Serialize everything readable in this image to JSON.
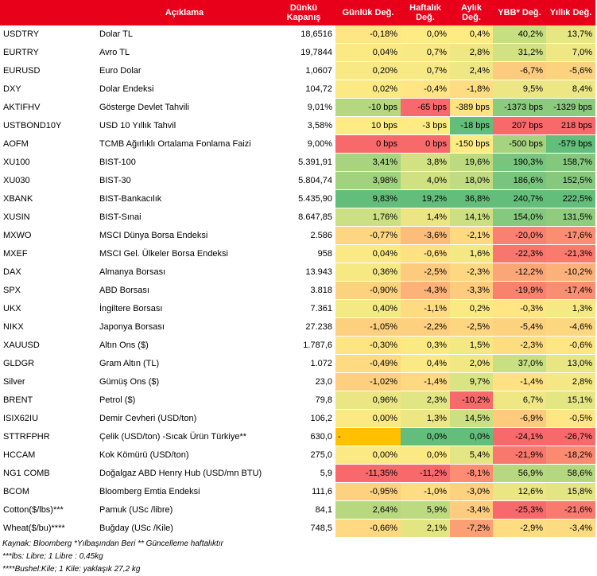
{
  "header": {
    "col_code": "",
    "col_desc": "Açıklama",
    "col_close": "Dünkü Kapanış",
    "col_daily": "Günlük Değ.",
    "col_weekly": "Haftalık Değ.",
    "col_monthly": "Aylık Değ.",
    "col_ytd": "YBB* Değ.",
    "col_yearly": "Yıllık Değ."
  },
  "colors": {
    "header_red": "#e8001a",
    "green_strong": "#63be7b",
    "green": "#a5d37f",
    "green_light": "#d1e282",
    "yellow": "#ffeb84",
    "orange_light": "#fcc17c",
    "orange": "#f9a077",
    "red": "#f8696b",
    "amber": "#ffc000"
  },
  "rows": [
    {
      "code": "USDTRY",
      "desc": "Dolar TL",
      "close": "18,6516",
      "c": [
        {
          "v": "-0,18%",
          "bg": "#ffe684"
        },
        {
          "v": "0,0%",
          "bg": "#ffeb84"
        },
        {
          "v": "0,4%",
          "bg": "#ffeb84"
        },
        {
          "v": "40,2%",
          "bg": "#c6df81"
        },
        {
          "v": "13,7%",
          "bg": "#e6e683"
        }
      ]
    },
    {
      "code": "EURTRY",
      "desc": "Avro TL",
      "close": "19,7844",
      "c": [
        {
          "v": "0,04%",
          "bg": "#fbea84"
        },
        {
          "v": "0,7%",
          "bg": "#f7e984"
        },
        {
          "v": "2,8%",
          "bg": "#eee784"
        },
        {
          "v": "31,2%",
          "bg": "#d2e282"
        },
        {
          "v": "7,0%",
          "bg": "#eee784"
        }
      ]
    },
    {
      "code": "EURUSD",
      "desc": "Euro Dolar",
      "close": "1,0607",
      "c": [
        {
          "v": "0,20%",
          "bg": "#f8e984"
        },
        {
          "v": "0,7%",
          "bg": "#f7e984"
        },
        {
          "v": "2,4%",
          "bg": "#efe784"
        },
        {
          "v": "-6,7%",
          "bg": "#fdcb7e"
        },
        {
          "v": "-5,6%",
          "bg": "#fdd27f"
        }
      ]
    },
    {
      "code": "DXY",
      "desc": "Dolar Endeksi",
      "close": "104,72",
      "c": [
        {
          "v": "0,02%",
          "bg": "#fbea84"
        },
        {
          "v": "-0,4%",
          "bg": "#ffe583"
        },
        {
          "v": "-1,8%",
          "bg": "#fedc81"
        },
        {
          "v": "9,5%",
          "bg": "#ece784"
        },
        {
          "v": "8,4%",
          "bg": "#ece784"
        }
      ]
    },
    {
      "code": "AKTIFHV",
      "desc": "Gösterge Devlet Tahvili",
      "close": "9,01%",
      "c": [
        {
          "v": "-10 bps",
          "bg": "#b4d780"
        },
        {
          "v": "-65 bps",
          "bg": "#f8696b"
        },
        {
          "v": "-389 bps",
          "bg": "#ffe283"
        },
        {
          "v": "-1373 bps",
          "bg": "#8ccb7e"
        },
        {
          "v": "-1329 bps",
          "bg": "#8ccb7e"
        }
      ]
    },
    {
      "code": "USTBOND10Y",
      "desc": "USD 10 Yıllık Tahvil",
      "close": "3,58%",
      "c": [
        {
          "v": "10 bps",
          "bg": "#ffeb84"
        },
        {
          "v": "-3 bps",
          "bg": "#ffeb84"
        },
        {
          "v": "-18 bps",
          "bg": "#63be7b"
        },
        {
          "v": "207 bps",
          "bg": "#f8696b"
        },
        {
          "v": "218 bps",
          "bg": "#f8696b"
        }
      ]
    },
    {
      "code": "AOFM",
      "desc": "TCMB Ağırlıklı Ortalama Fonlama Faizi",
      "close": "9,00%",
      "c": [
        {
          "v": "0 bps",
          "bg": "#f8696b"
        },
        {
          "v": "0 bps",
          "bg": "#f8696b"
        },
        {
          "v": "-150 bps",
          "bg": "#ffeb84"
        },
        {
          "v": "-500 bps",
          "bg": "#a5d37f"
        },
        {
          "v": "-579 bps",
          "bg": "#63be7b"
        }
      ]
    },
    {
      "code": "XU100",
      "desc": "BIST-100",
      "close": "5.391,91",
      "c": [
        {
          "v": "3,41%",
          "bg": "#a9d47f"
        },
        {
          "v": "3,8%",
          "bg": "#d1e282"
        },
        {
          "v": "19,6%",
          "bg": "#bcda80"
        },
        {
          "v": "190,3%",
          "bg": "#78c57d"
        },
        {
          "v": "158,7%",
          "bg": "#84c87e"
        }
      ]
    },
    {
      "code": "XU030",
      "desc": "BIST-30",
      "close": "5.804,74",
      "c": [
        {
          "v": "3,98%",
          "bg": "#a3d27f"
        },
        {
          "v": "4,0%",
          "bg": "#d0e182"
        },
        {
          "v": "18,0%",
          "bg": "#c0db81"
        },
        {
          "v": "186,6%",
          "bg": "#79c57d"
        },
        {
          "v": "152,5%",
          "bg": "#86c97e"
        }
      ]
    },
    {
      "code": "XBANK",
      "desc": "BIST-Bankacılık",
      "close": "5.435,90",
      "c": [
        {
          "v": "9,83%",
          "bg": "#63be7b"
        },
        {
          "v": "19,2%",
          "bg": "#63be7b"
        },
        {
          "v": "36,8%",
          "bg": "#63be7b"
        },
        {
          "v": "240,7%",
          "bg": "#63be7b"
        },
        {
          "v": "222,5%",
          "bg": "#63be7b"
        }
      ]
    },
    {
      "code": "XUSIN",
      "desc": "BIST-Sınai",
      "close": "8.647,85",
      "c": [
        {
          "v": "1,76%",
          "bg": "#cbe082"
        },
        {
          "v": "1,4%",
          "bg": "#ebe683"
        },
        {
          "v": "14,1%",
          "bg": "#cce082"
        },
        {
          "v": "154,0%",
          "bg": "#85c97e"
        },
        {
          "v": "131,5%",
          "bg": "#8fcc7e"
        }
      ]
    },
    {
      "code": "MXWO",
      "desc": "MSCI Dünya Borsa Endeksi",
      "close": "2.586",
      "c": [
        {
          "v": "-0,77%",
          "bg": "#fed580"
        },
        {
          "v": "-3,6%",
          "bg": "#fcbd7b"
        },
        {
          "v": "-2,1%",
          "bg": "#fed981"
        },
        {
          "v": "-20,0%",
          "bg": "#f9816f"
        },
        {
          "v": "-17,6%",
          "bg": "#fa8e72"
        }
      ]
    },
    {
      "code": "MXEF",
      "desc": "MSCI Gel. Ülkeler Borsa Endeksi",
      "close": "958",
      "c": [
        {
          "v": "0,04%",
          "bg": "#fbea84"
        },
        {
          "v": "-0,6%",
          "bg": "#fee182"
        },
        {
          "v": "1,6%",
          "bg": "#f3e884"
        },
        {
          "v": "-22,3%",
          "bg": "#f8766d"
        },
        {
          "v": "-21,3%",
          "bg": "#f97a6e"
        }
      ]
    },
    {
      "code": "DAX",
      "desc": "Almanya Borsası",
      "close": "13.943",
      "c": [
        {
          "v": "0,36%",
          "bg": "#f6e984"
        },
        {
          "v": "-2,5%",
          "bg": "#fdcb7e"
        },
        {
          "v": "-2,3%",
          "bg": "#fed880"
        },
        {
          "v": "-12,2%",
          "bg": "#fba676"
        },
        {
          "v": "-10,2%",
          "bg": "#fbb179"
        }
      ]
    },
    {
      "code": "SPX",
      "desc": "ABD Borsası",
      "close": "3.818",
      "c": [
        {
          "v": "-0,90%",
          "bg": "#fdd27f"
        },
        {
          "v": "-4,3%",
          "bg": "#fbb379"
        },
        {
          "v": "-3,3%",
          "bg": "#fdcc7e"
        },
        {
          "v": "-19,9%",
          "bg": "#f9826f"
        },
        {
          "v": "-17,4%",
          "bg": "#fa8e72"
        }
      ]
    },
    {
      "code": "UKX",
      "desc": "İngiltere Borsası",
      "close": "7.361",
      "c": [
        {
          "v": "0,40%",
          "bg": "#f5e984"
        },
        {
          "v": "-1,1%",
          "bg": "#fedb81"
        },
        {
          "v": "0,2%",
          "bg": "#fbea84"
        },
        {
          "v": "-0,3%",
          "bg": "#ffe583"
        },
        {
          "v": "1,3%",
          "bg": "#f6e984"
        }
      ]
    },
    {
      "code": "NIKX",
      "desc": "Japonya Borsası",
      "close": "27.238",
      "c": [
        {
          "v": "-1,05%",
          "bg": "#fdd07f"
        },
        {
          "v": "-2,2%",
          "bg": "#fdcf7e"
        },
        {
          "v": "-2,5%",
          "bg": "#fed680"
        },
        {
          "v": "-5,4%",
          "bg": "#fdd27f"
        },
        {
          "v": "-4,6%",
          "bg": "#fdd680"
        }
      ]
    },
    {
      "code": "XAUUSD",
      "desc": "Altın Ons ($)",
      "close": "1.787,6",
      "c": [
        {
          "v": "-0,30%",
          "bg": "#ffe483"
        },
        {
          "v": "0,3%",
          "bg": "#fbea84"
        },
        {
          "v": "1,5%",
          "bg": "#f4e884"
        },
        {
          "v": "-2,3%",
          "bg": "#fedd81"
        },
        {
          "v": "-0,6%",
          "bg": "#ffe583"
        }
      ]
    },
    {
      "code": "GLDGR",
      "desc": "Gram Altın (TL)",
      "close": "1.072",
      "c": [
        {
          "v": "-0,49%",
          "bg": "#fedb81"
        },
        {
          "v": "0,4%",
          "bg": "#fae984"
        },
        {
          "v": "2,0%",
          "bg": "#f1e884"
        },
        {
          "v": "37,0%",
          "bg": "#c9e082"
        },
        {
          "v": "13,0%",
          "bg": "#e7e683"
        }
      ]
    },
    {
      "code": "Silver",
      "desc": "Gümüş Ons ($)",
      "close": "23,0",
      "c": [
        {
          "v": "-1,02%",
          "bg": "#fdd07f"
        },
        {
          "v": "-1,4%",
          "bg": "#fed981"
        },
        {
          "v": "9,7%",
          "bg": "#d9e482"
        },
        {
          "v": "-1,4%",
          "bg": "#fee182"
        },
        {
          "v": "2,8%",
          "bg": "#f4e884"
        }
      ]
    },
    {
      "code": "BRENT",
      "desc": "Petrol ($)",
      "close": "79,8",
      "c": [
        {
          "v": "0,96%",
          "bg": "#eae683"
        },
        {
          "v": "2,3%",
          "bg": "#e2e583"
        },
        {
          "v": "-10,2%",
          "bg": "#f8696b"
        },
        {
          "v": "6,7%",
          "bg": "#efe784"
        },
        {
          "v": "15,1%",
          "bg": "#e4e583"
        }
      ]
    },
    {
      "code": "ISIX62IU",
      "desc": "Demir Cevheri (USD/ton)",
      "close": "106,2",
      "c": [
        {
          "v": "0,00%",
          "bg": "#fbea84"
        },
        {
          "v": "1,3%",
          "bg": "#ece784"
        },
        {
          "v": "14,5%",
          "bg": "#cbe082"
        },
        {
          "v": "-6,9%",
          "bg": "#fdca7e"
        },
        {
          "v": "-0,5%",
          "bg": "#ffe583"
        }
      ]
    },
    {
      "code": "STTRFPHR",
      "desc": "Çelik (USD/ton) -Sıcak Ürün Türkiye**",
      "close": "630,0",
      "c": [
        {
          "v": "-",
          "bg": "#ffc000",
          "a": "left"
        },
        {
          "v": "0,0%",
          "bg": "#63be7b"
        },
        {
          "v": "0,0%",
          "bg": "#63be7b"
        },
        {
          "v": "-24,1%",
          "bg": "#f8696b"
        },
        {
          "v": "-26,7%",
          "bg": "#f8696b"
        }
      ]
    },
    {
      "code": "HCCAM",
      "desc": "Kok Kömürü (USD/ton)",
      "close": "275,0",
      "c": [
        {
          "v": "0,00%",
          "bg": "#fbea84"
        },
        {
          "v": "0,0%",
          "bg": "#fbea84"
        },
        {
          "v": "5,4%",
          "bg": "#e4e583"
        },
        {
          "v": "-21,9%",
          "bg": "#f8786d"
        },
        {
          "v": "-18,2%",
          "bg": "#fa8b71"
        }
      ]
    },
    {
      "code": "NG1 COMB",
      "desc": "Doğalgaz ABD Henry Hub (USD/mn BTU)",
      "close": "5,9",
      "c": [
        {
          "v": "-11,35%",
          "bg": "#f8696b"
        },
        {
          "v": "-11,2%",
          "bg": "#f8696b"
        },
        {
          "v": "-8,1%",
          "bg": "#fa8d72"
        },
        {
          "v": "56,9%",
          "bg": "#b7d880"
        },
        {
          "v": "58,6%",
          "bg": "#b4d780"
        }
      ]
    },
    {
      "code": "BCOM",
      "desc": "Bloomberg Emtia Endeksi",
      "close": "111,6",
      "c": [
        {
          "v": "-0,95%",
          "bg": "#fdd27f"
        },
        {
          "v": "-1,0%",
          "bg": "#fedc81"
        },
        {
          "v": "-3,0%",
          "bg": "#fed17f"
        },
        {
          "v": "12,6%",
          "bg": "#e9e683"
        },
        {
          "v": "15,8%",
          "bg": "#e3e583"
        }
      ]
    },
    {
      "code": "Cotton($/lbs)***",
      "desc": "Pamuk (USc /libre)",
      "close": "84,1",
      "c": [
        {
          "v": "2,64%",
          "bg": "#b8d880"
        },
        {
          "v": "5,9%",
          "bg": "#bcda80"
        },
        {
          "v": "-3,4%",
          "bg": "#fdcc7e"
        },
        {
          "v": "-25,3%",
          "bg": "#f8696b"
        },
        {
          "v": "-21,6%",
          "bg": "#f97a6e"
        }
      ]
    },
    {
      "code": "Wheat($/bu)****",
      "desc": "Buğday (USc /Kile)",
      "close": "748,5",
      "c": [
        {
          "v": "-0,66%",
          "bg": "#fed981"
        },
        {
          "v": "2,1%",
          "bg": "#e3e583"
        },
        {
          "v": "-7,2%",
          "bg": "#fb9f75"
        },
        {
          "v": "-2,9%",
          "bg": "#fedc81"
        },
        {
          "v": "-3,4%",
          "bg": "#fddb81"
        }
      ]
    }
  ],
  "notes": {
    "line1": "Kaynak: Bloomberg *Yılbaşından Beri  ** Güncelleme haftalıktır",
    "line2": "***lbs: Libre; 1 Libre : 0,45kg",
    "line3": "****Bushel:Kile; 1 Kile: yaklaşık 27,2 kg"
  }
}
